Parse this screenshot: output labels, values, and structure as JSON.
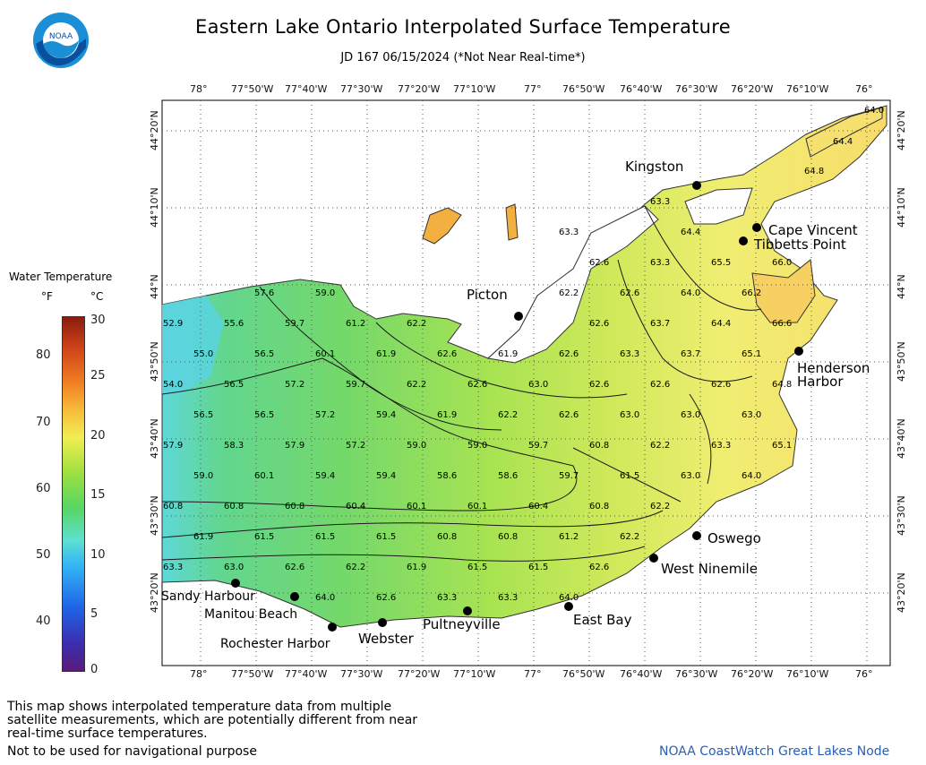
{
  "title": "Eastern Lake Ontario Interpolated Surface Temperature",
  "subtitle": "JD 167 06/15/2024 (*Not Near Real-time*)",
  "logo": {
    "label": "NOAA",
    "icon": "noaa-logo-icon"
  },
  "legend": {
    "title": "Water Temperature",
    "unit_f": "°F",
    "unit_c": "°C",
    "f_ticks": [
      "80",
      "70",
      "60",
      "50",
      "40"
    ],
    "c_ticks": [
      "30",
      "25",
      "20",
      "15",
      "10",
      "5",
      "0"
    ]
  },
  "axes": {
    "lon_labels": [
      "78°",
      "77°50'W",
      "77°40'W",
      "77°30'W",
      "77°20'W",
      "77°10'W",
      "77°",
      "76°50'W",
      "76°40'W",
      "76°30'W",
      "76°20'W",
      "76°10'W",
      "76°"
    ],
    "lat_labels": [
      "44°20'N",
      "44°10'N",
      "44°N",
      "43°50'N",
      "43°40'N",
      "43°30'N",
      "43°20'N"
    ]
  },
  "places": [
    {
      "name": "Kingston"
    },
    {
      "name": "Cape Vincent"
    },
    {
      "name": "Tibbetts Point"
    },
    {
      "name": "Picton"
    },
    {
      "name": "Henderson"
    },
    {
      "name": "Harbor"
    },
    {
      "name": "Oswego"
    },
    {
      "name": "West Ninemile"
    },
    {
      "name": "East Bay"
    },
    {
      "name": "Pultneyville"
    },
    {
      "name": "Webster"
    },
    {
      "name": "Rochester Harbor"
    },
    {
      "name": "Manitou Beach"
    },
    {
      "name": "Sandy Harbour"
    }
  ],
  "temperatures": [
    "64.0",
    "64.4",
    "64.8",
    "63.3",
    "63.3",
    "64.4",
    "62.6",
    "63.3",
    "65.5",
    "66.0",
    "57.6",
    "59.0",
    "62.2",
    "62.6",
    "64.0",
    "66.2",
    "52.9",
    "55.6",
    "59.7",
    "61.2",
    "62.2",
    "62.6",
    "63.7",
    "64.4",
    "66.6",
    "55.0",
    "56.5",
    "60.1",
    "61.9",
    "62.6",
    "61.9",
    "62.6",
    "63.3",
    "63.7",
    "65.1",
    "54.0",
    "56.5",
    "57.2",
    "59.7",
    "62.2",
    "62.6",
    "63.0",
    "62.6",
    "62.6",
    "62.6",
    "64.8",
    "56.5",
    "56.5",
    "57.2",
    "59.4",
    "61.9",
    "62.2",
    "62.6",
    "63.0",
    "63.0",
    "63.0",
    "57.9",
    "58.3",
    "57.9",
    "57.2",
    "59.0",
    "59.0",
    "59.7",
    "60.8",
    "62.2",
    "63.3",
    "65.1",
    "59.0",
    "60.1",
    "59.4",
    "59.4",
    "58.6",
    "58.6",
    "59.7",
    "61.5",
    "63.0",
    "64.0",
    "60.8",
    "60.8",
    "60.8",
    "60.4",
    "60.1",
    "60.1",
    "60.4",
    "60.8",
    "62.2",
    "61.9",
    "61.5",
    "61.5",
    "61.5",
    "60.8",
    "60.8",
    "61.2",
    "62.2",
    "63.3",
    "63.0",
    "62.6",
    "62.2",
    "61.9",
    "61.5",
    "61.5",
    "62.6",
    "64.0",
    "62.6",
    "63.3",
    "63.3",
    "64.0"
  ],
  "notice": "This map shows interpolated temperature data from multiple satellite measurements, which are potentially different from near real-time surface temperatures.",
  "nav_warning": "Not to be used for navigational purpose",
  "credit": "NOAA CoastWatch Great Lakes Node"
}
